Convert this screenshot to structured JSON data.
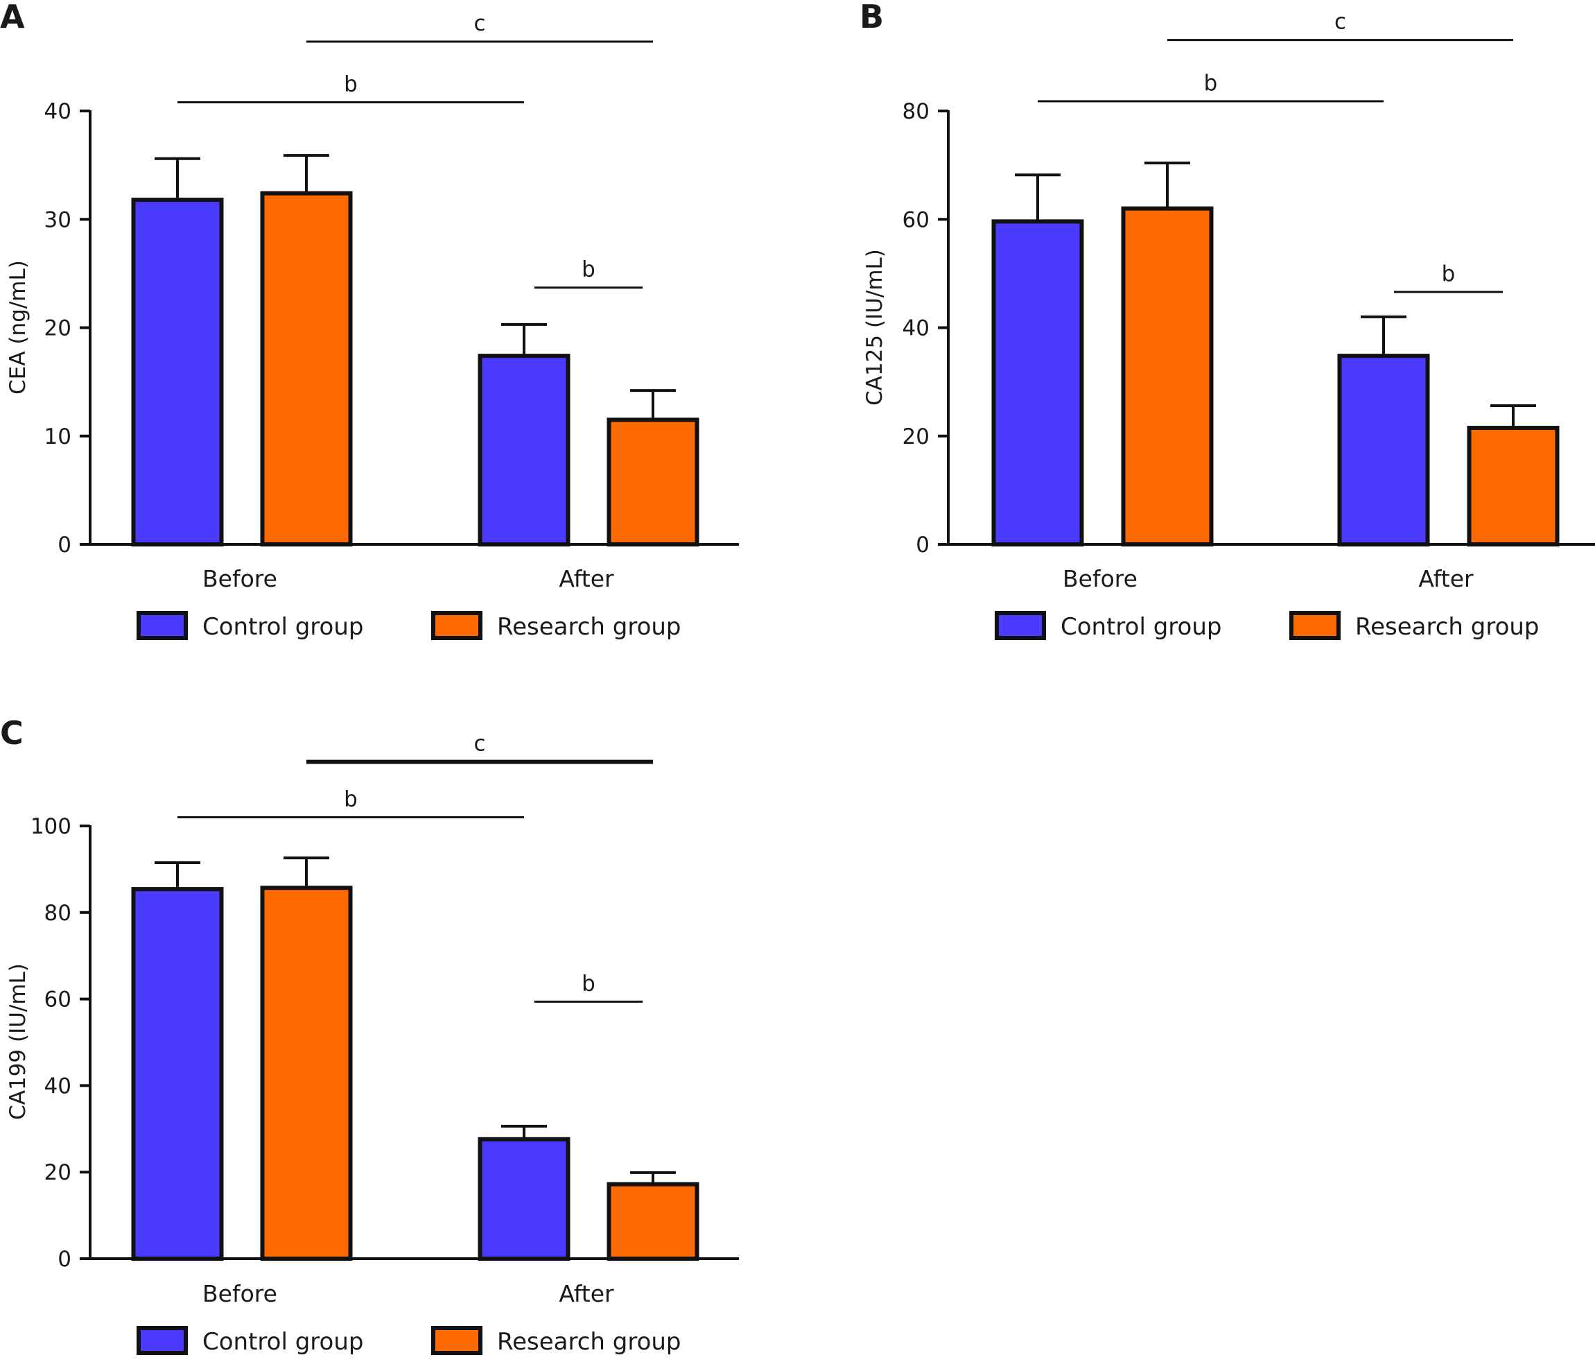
{
  "figure": {
    "colors": {
      "control": "#4b3aff",
      "research": "#ff6a00",
      "outline": "#111111"
    }
  },
  "chart_data": [
    {
      "panel": "A",
      "type": "bar",
      "ylabel": "CEA (ng/mL)",
      "ylim": [
        0,
        40
      ],
      "yticks": [
        0,
        10,
        20,
        30,
        40
      ],
      "categories": [
        "Before",
        "After"
      ],
      "series": [
        {
          "name": "Control group",
          "values": [
            31.8,
            17.4
          ],
          "errors": [
            3.8,
            2.9
          ]
        },
        {
          "name": "Research group",
          "values": [
            32.4,
            11.5
          ],
          "errors": [
            3.5,
            2.7
          ]
        }
      ],
      "significance": [
        {
          "label": "c",
          "from": "Research group/Before",
          "to": "Research group/After",
          "y": 46.4
        },
        {
          "label": "b",
          "from": "Control group/Before",
          "to": "Control group/After",
          "y": 40.8
        },
        {
          "label": "b",
          "from": "Control group/After",
          "to": "Research group/After",
          "y": 23.7
        }
      ],
      "legend": {
        "position": "bottom",
        "items": [
          "Control group",
          "Research group"
        ]
      }
    },
    {
      "panel": "B",
      "type": "bar",
      "ylabel": "CA125 (IU/mL)",
      "ylim": [
        0,
        80
      ],
      "yticks": [
        0,
        20,
        40,
        60,
        80
      ],
      "categories": [
        "Before",
        "After"
      ],
      "series": [
        {
          "name": "Control group",
          "values": [
            59.6,
            34.8
          ],
          "errors": [
            8.6,
            7.2
          ]
        },
        {
          "name": "Research group",
          "values": [
            62.0,
            21.5
          ],
          "errors": [
            8.4,
            4.1
          ]
        }
      ],
      "significance": [
        {
          "label": "c",
          "from": "Research group/Before",
          "to": "Research group/After",
          "y": 93.1
        },
        {
          "label": "b",
          "from": "Control group/Before",
          "to": "Control group/After",
          "y": 81.8
        },
        {
          "label": "b",
          "from": "Control group/After",
          "to": "Research group/After",
          "y": 46.6
        }
      ],
      "legend": {
        "position": "bottom",
        "items": [
          "Control group",
          "Research group"
        ]
      }
    },
    {
      "panel": "C",
      "type": "bar",
      "ylabel": "CA199 (IU/mL)",
      "ylim": [
        0,
        100
      ],
      "yticks": [
        0,
        20,
        40,
        60,
        80,
        100
      ],
      "categories": [
        "Before",
        "After"
      ],
      "series": [
        {
          "name": "Control group",
          "values": [
            85.4,
            27.6
          ],
          "errors": [
            6.1,
            3.0
          ]
        },
        {
          "name": "Research group",
          "values": [
            85.7,
            17.2
          ],
          "errors": [
            6.9,
            2.7
          ]
        }
      ],
      "significance": [
        {
          "label": "c",
          "from": "Research group/Before",
          "to": "Research group/After",
          "y": 114.8
        },
        {
          "label": "b",
          "from": "Control group/Before",
          "to": "Control group/After",
          "y": 102.0
        },
        {
          "label": "b",
          "from": "Control group/After",
          "to": "Research group/After",
          "y": 59.4
        }
      ],
      "legend": {
        "position": "bottom",
        "items": [
          "Control group",
          "Research group"
        ]
      }
    }
  ]
}
